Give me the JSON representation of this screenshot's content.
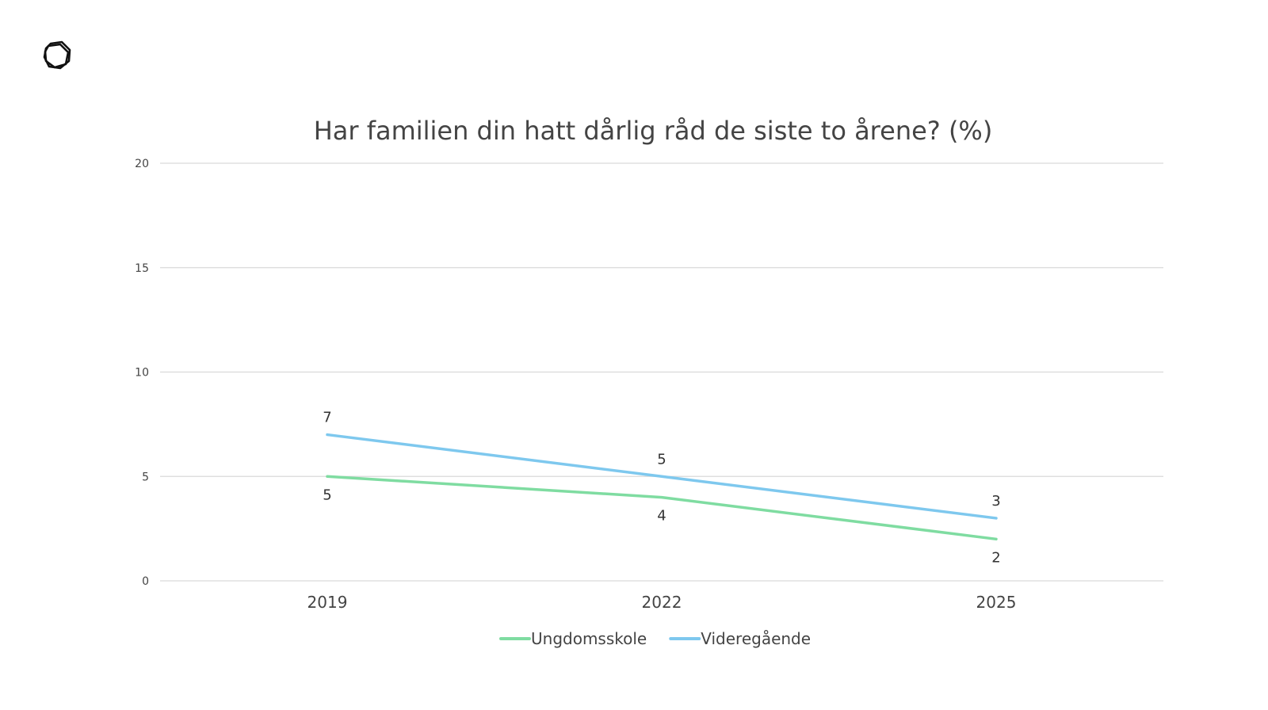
{
  "chart_data": {
    "type": "line",
    "title": "Har familien din hatt dårlig råd de siste to årene? (%)",
    "xlabel": "",
    "ylabel": "",
    "categories": [
      "2019",
      "2022",
      "2025"
    ],
    "ylim": [
      0,
      20
    ],
    "yticks": [
      "0",
      "5",
      "10",
      "15",
      "20"
    ],
    "grid": true,
    "legend_position": "bottom",
    "series": [
      {
        "name": "Ungdomsskole",
        "values": [
          5,
          4,
          2
        ],
        "color": "#7fdca1",
        "label_position": "below"
      },
      {
        "name": "Videregående",
        "values": [
          7,
          5,
          3
        ],
        "color": "#7ec8ee",
        "label_position": "above"
      }
    ]
  },
  "logo": {
    "icon": "brand-logo-icon"
  }
}
